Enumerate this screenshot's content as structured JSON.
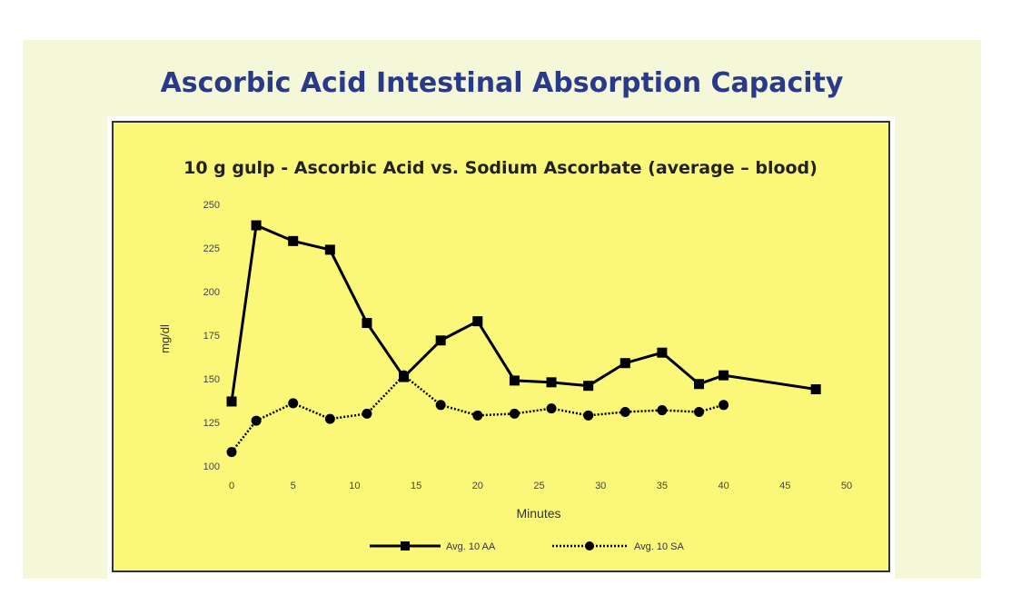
{
  "page_title": "Ascorbic Acid Intestinal Absorption Capacity",
  "colors": {
    "title": "#2a3a8a",
    "panel": "#f5f7d9",
    "plot_bg": "#fbf779",
    "series": "#000000"
  },
  "chart_data": {
    "type": "line",
    "title": "10 g gulp - Ascorbic Acid vs. Sodium Ascorbate (average – blood)",
    "xlabel": "Minutes",
    "ylabel": "mg/dl",
    "xlim": [
      0,
      50
    ],
    "ylim": [
      100,
      250
    ],
    "xticks": [
      0,
      5,
      10,
      15,
      20,
      25,
      30,
      35,
      40,
      45,
      50
    ],
    "yticks": [
      100,
      125,
      150,
      175,
      200,
      225,
      250
    ],
    "grid": false,
    "legend": "bottom",
    "series": [
      {
        "name": "Avg. 10 AA",
        "marker": "square",
        "line": "solid",
        "x": [
          0,
          2,
          5,
          8,
          11,
          14,
          17,
          20,
          23,
          26,
          29,
          32,
          35,
          38,
          40,
          47.5
        ],
        "y": [
          137,
          238,
          229,
          224,
          182,
          151,
          172,
          183,
          149,
          148,
          146,
          159,
          165,
          147,
          152,
          144
        ]
      },
      {
        "name": "Avg. 10 SA",
        "marker": "circle",
        "line": "dotted",
        "x": [
          0,
          2,
          5,
          8,
          11,
          14,
          17,
          20,
          23,
          26,
          29,
          32,
          35,
          38,
          40
        ],
        "y": [
          108,
          126,
          136,
          127,
          130,
          152,
          135,
          129,
          130,
          133,
          129,
          131,
          132,
          131,
          135
        ]
      }
    ]
  }
}
